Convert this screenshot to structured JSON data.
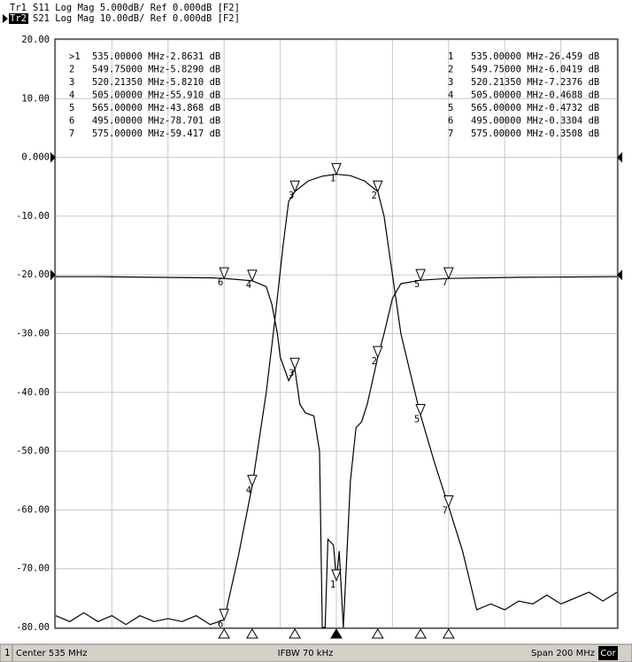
{
  "header": {
    "lines": [
      {
        "trace": "Tr1",
        "text": "S11 Log Mag 5.000dB/ Ref 0.000dB [F2]"
      },
      {
        "trace": "Tr2",
        "text": "S21 Log Mag 10.00dB/ Ref 0.000dB [F2]"
      }
    ]
  },
  "chart_data": {
    "type": "line",
    "xlim": [
      435,
      635
    ],
    "xticks": [
      435,
      455,
      475,
      495,
      515,
      535,
      555,
      575,
      595,
      615,
      635
    ],
    "ylim": [
      -80,
      20
    ],
    "yticks": [
      {
        "value": 20,
        "label": "20.00"
      },
      {
        "value": 10,
        "label": "10.00"
      },
      {
        "value": 0,
        "label": "0.000"
      },
      {
        "value": -10,
        "label": "-10.00"
      },
      {
        "value": -20,
        "label": "-20.00"
      },
      {
        "value": -30,
        "label": "-30.00"
      },
      {
        "value": -40,
        "label": "-40.00"
      },
      {
        "value": -50,
        "label": "-50.00"
      },
      {
        "value": -60,
        "label": "-60.00"
      },
      {
        "value": -70,
        "label": "-70.00"
      },
      {
        "value": -80,
        "label": "-80.00"
      }
    ],
    "grid": true,
    "series": [
      {
        "color": "#000000",
        "x": [
          435,
          440,
          445,
          450,
          455,
          460,
          465,
          470,
          475,
          480,
          485,
          490,
          495,
          500,
          505,
          510,
          513,
          516,
          518,
          520.2135,
          525,
          530,
          535,
          540,
          545,
          549.75,
          552,
          555,
          558,
          562,
          565,
          570,
          575,
          580,
          583,
          585,
          590,
          595,
          600,
          605,
          610,
          615,
          620,
          625,
          630,
          635
        ],
        "values": [
          -78,
          -79,
          -77.5,
          -79,
          -78,
          -79.5,
          -78,
          -79,
          -78.5,
          -79,
          -78,
          -79.5,
          -78.701,
          -68,
          -55.91,
          -40,
          -28,
          -15,
          -7.5,
          -5.821,
          -4,
          -3.2,
          -2.8631,
          -3.1,
          -4,
          -5.829,
          -10,
          -20,
          -30,
          -38,
          -43.868,
          -52,
          -59.417,
          -67,
          -73,
          -77,
          -76,
          -77,
          -75.5,
          -76,
          -74.5,
          -76,
          -75,
          -74,
          -75.5,
          -74
        ]
      },
      {
        "color": "#000000",
        "x": [
          435,
          450,
          470,
          490,
          495,
          505,
          510,
          512,
          514,
          515,
          518,
          520.2135,
          522,
          524,
          527,
          529,
          530,
          531,
          532,
          534,
          535,
          536,
          537.5,
          540,
          542,
          544,
          546,
          549.75,
          552,
          555,
          558,
          565,
          575,
          600,
          635
        ],
        "values": [
          -20.3,
          -20.3,
          -20.4,
          -20.5,
          -20.6,
          -21,
          -22,
          -25,
          -30,
          -34,
          -38,
          -36,
          -42,
          -43.5,
          -44,
          -50,
          -80,
          -80,
          -65,
          -66,
          -72,
          -67,
          -80,
          -55,
          -46,
          -45,
          -42,
          -34,
          -30,
          -24,
          -21.5,
          -20.9,
          -20.6,
          -20.4,
          -20.3
        ]
      }
    ]
  },
  "markers_left": [
    {
      "id": ">1",
      "x": 535,
      "x_label": "535.00000 MHz",
      "value": -2.8631,
      "value_label": "-2.8631 dB"
    },
    {
      "id": "2",
      "x": 549.75,
      "x_label": "549.75000 MHz",
      "value": -5.829,
      "value_label": "-5.8290 dB"
    },
    {
      "id": "3",
      "x": 520.2135,
      "x_label": "520.21350 MHz",
      "value": -5.821,
      "value_label": "-5.8210 dB"
    },
    {
      "id": "4",
      "x": 505,
      "x_label": "505.00000 MHz",
      "value": -55.91,
      "value_label": "-55.910 dB"
    },
    {
      "id": "5",
      "x": 565,
      "x_label": "565.00000 MHz",
      "value": -43.868,
      "value_label": "-43.868 dB"
    },
    {
      "id": "6",
      "x": 495,
      "x_label": "495.00000 MHz",
      "value": -78.701,
      "value_label": "-78.701 dB"
    },
    {
      "id": "7",
      "x": 575,
      "x_label": "575.00000 MHz",
      "value": -59.417,
      "value_label": "-59.417 dB"
    }
  ],
  "markers_right": [
    {
      "id": "1",
      "x": 535,
      "x_label": "535.00000 MHz",
      "value": -26.459,
      "value_label": "-26.459 dB"
    },
    {
      "id": "2",
      "x": 549.75,
      "x_label": "549.75000 MHz",
      "value": -6.0419,
      "value_label": "-6.0419 dB"
    },
    {
      "id": "3",
      "x": 520.2135,
      "x_label": "520.21350 MHz",
      "value": -7.2376,
      "value_label": "-7.2376 dB"
    },
    {
      "id": "4",
      "x": 505,
      "x_label": "505.00000 MHz",
      "value": -0.4688,
      "value_label": "-0.4688 dB"
    },
    {
      "id": "5",
      "x": 565,
      "x_label": "565.00000 MHz",
      "value": -0.4732,
      "value_label": "-0.4732 dB"
    },
    {
      "id": "6",
      "x": 495,
      "x_label": "495.00000 MHz",
      "value": -0.3304,
      "value_label": "-0.3304 dB"
    },
    {
      "id": "7",
      "x": 575,
      "x_label": "575.00000 MHz",
      "value": -0.3508,
      "value_label": "-0.3508 dB"
    }
  ],
  "footer": {
    "channel": "1",
    "center": "Center 535 MHz",
    "ifbw": "IFBW 70 kHz",
    "span": "Span 200 MHz",
    "cor": "Cor"
  }
}
